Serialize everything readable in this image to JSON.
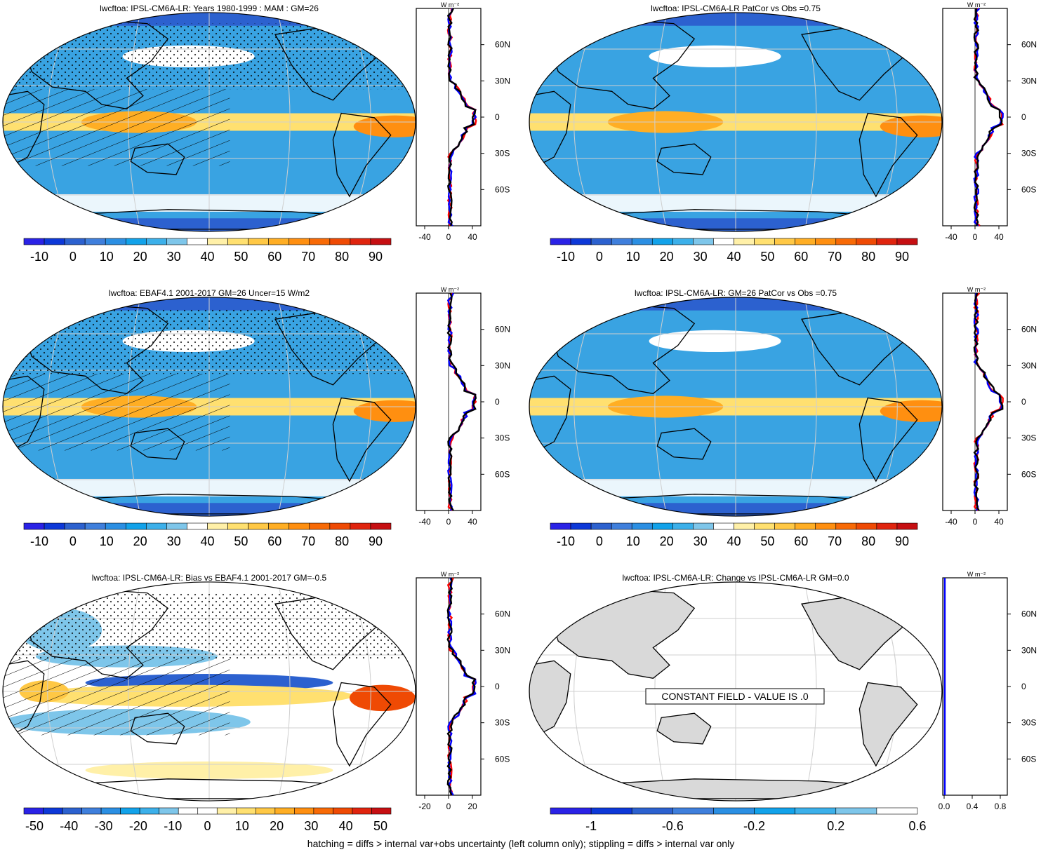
{
  "footnote": "hatching = diffs > internal var+obs uncertainty (left column only); stippling = diffs > internal var only",
  "profile_unit": "W m⁻²",
  "lat_labels": [
    "60N",
    "30N",
    "0",
    "30S",
    "60S"
  ],
  "colors": {
    "ocean": "#39a3e2",
    "land": "#d9d9d9",
    "profile_model": "#0000ff",
    "profile_obs": "#ff0000",
    "profile_mean": "#000000"
  },
  "panels": [
    {
      "title": "lwcftoa: IPSL-CM6A-LR: Years 1980-1999 : MAM : GM=26",
      "colorbar_labels": [
        "-10",
        "0",
        "10",
        "20",
        "30",
        "40",
        "50",
        "60",
        "70",
        "80",
        "90"
      ],
      "profile_ticks": [
        "-40",
        "0",
        "40"
      ],
      "hatching": true,
      "stippling": true,
      "message": ""
    },
    {
      "title": "lwcftoa: IPSL-CM6A-LR PatCor vs Obs =0.75",
      "colorbar_labels": [
        "-10",
        "0",
        "10",
        "20",
        "30",
        "40",
        "50",
        "60",
        "70",
        "80",
        "90"
      ],
      "profile_ticks": [
        "-40",
        "0",
        "40"
      ],
      "hatching": false,
      "stippling": false,
      "message": ""
    },
    {
      "title": "lwcftoa: EBAF4.1 2001-2017 GM=26 Uncer=15 W/m2",
      "colorbar_labels": [
        "-10",
        "0",
        "10",
        "20",
        "30",
        "40",
        "50",
        "60",
        "70",
        "80",
        "90"
      ],
      "profile_ticks": [
        "-40",
        "0",
        "40"
      ],
      "hatching": true,
      "stippling": true,
      "message": ""
    },
    {
      "title": "lwcftoa: IPSL-CM6A-LR: GM=26 PatCor vs Obs =0.75",
      "colorbar_labels": [
        "-10",
        "0",
        "10",
        "20",
        "30",
        "40",
        "50",
        "60",
        "70",
        "80",
        "90"
      ],
      "profile_ticks": [
        "-40",
        "0",
        "40"
      ],
      "hatching": false,
      "stippling": false,
      "message": ""
    },
    {
      "title": "lwcftoa: IPSL-CM6A-LR: Bias vs EBAF4.1 2001-2017 GM=-0.5",
      "colorbar_labels": [
        "-50",
        "-40",
        "-30",
        "-20",
        "-10",
        "0",
        "10",
        "20",
        "30",
        "40",
        "50"
      ],
      "profile_ticks": [
        "-20",
        "0",
        "20"
      ],
      "hatching": true,
      "stippling": true,
      "message": ""
    },
    {
      "title": "lwcftoa: IPSL-CM6A-LR: Change vs IPSL-CM6A-LR GM=0.0",
      "colorbar_labels": [
        "-1",
        "-0.6",
        "-0.2",
        "0.2",
        "0.6"
      ],
      "profile_ticks": [
        "0.0",
        "0.4",
        "0.8"
      ],
      "hatching": false,
      "stippling": false,
      "message": "CONSTANT FIELD - VALUE IS .0"
    }
  ]
}
